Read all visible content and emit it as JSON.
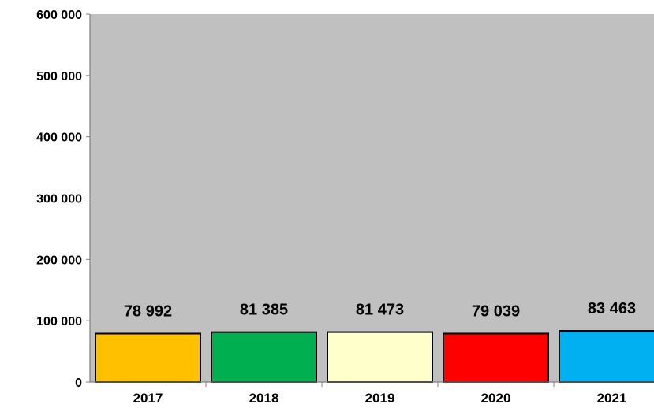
{
  "chart_data": {
    "type": "bar",
    "categories": [
      "2017",
      "2018",
      "2019",
      "2020",
      "2021"
    ],
    "values": [
      78992,
      81385,
      81473,
      79039,
      83463
    ],
    "data_labels": [
      "78 992",
      "81 385",
      "81 473",
      "79 039",
      "83 463"
    ],
    "bar_colors": [
      "#FFC000",
      "#00B050",
      "#FFFFCC",
      "#FF0000",
      "#00B0F0"
    ],
    "ylim": [
      0,
      600000
    ],
    "y_ticks": [
      0,
      100000,
      200000,
      300000,
      400000,
      500000,
      600000
    ],
    "y_tick_labels": [
      "0",
      "100 000",
      "200 000",
      "300 000",
      "400 000",
      "500 000",
      "600 000"
    ],
    "plot_background": "#C0C0C0",
    "grid": false,
    "legend": "none",
    "title": "",
    "xlabel": "",
    "ylabel": ""
  }
}
